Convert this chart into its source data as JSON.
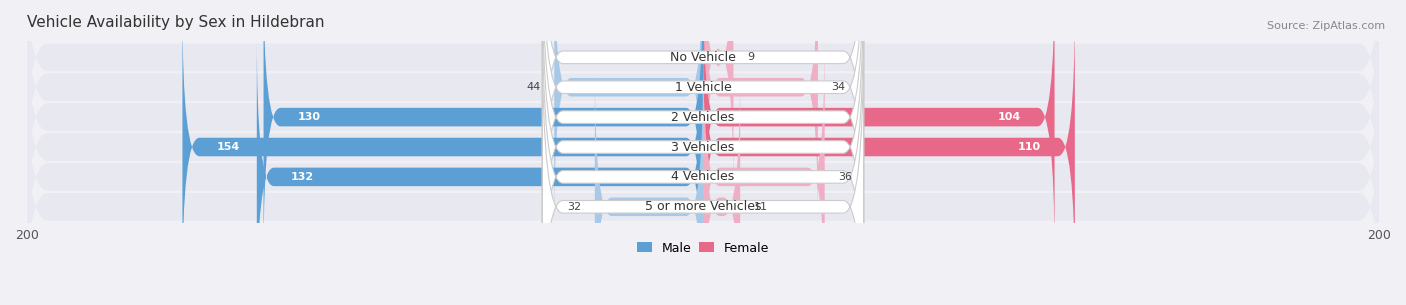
{
  "title": "Vehicle Availability by Sex in Hildebran",
  "source": "Source: ZipAtlas.com",
  "categories": [
    "No Vehicle",
    "1 Vehicle",
    "2 Vehicles",
    "3 Vehicles",
    "4 Vehicles",
    "5 or more Vehicles"
  ],
  "male_values": [
    0,
    44,
    130,
    154,
    132,
    32
  ],
  "female_values": [
    9,
    34,
    104,
    110,
    36,
    11
  ],
  "male_color_dark": "#5b9fd4",
  "male_color_light": "#a8c8e8",
  "female_color_dark": "#e8688a",
  "female_color_light": "#f0aec4",
  "row_bg_color": "#e8e8f0",
  "row_sep_color": "#ffffff",
  "axis_max": 200,
  "title_fontsize": 11,
  "source_fontsize": 8,
  "tick_fontsize": 9,
  "value_fontsize": 8,
  "category_fontsize": 9
}
